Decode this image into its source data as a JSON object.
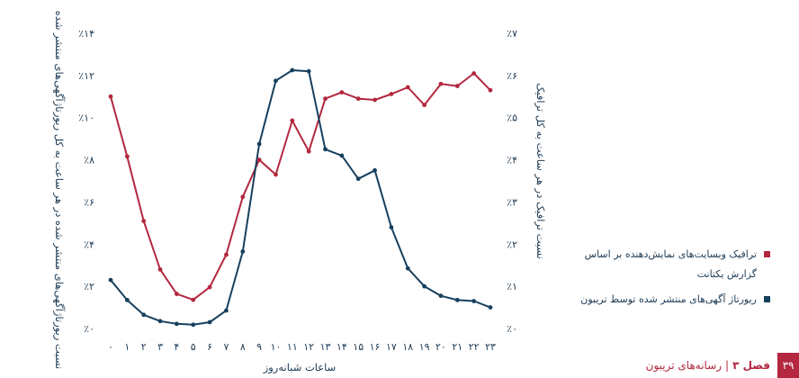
{
  "chart_data": {
    "type": "line",
    "x": [
      "۰",
      "۱",
      "۲",
      "۳",
      "۴",
      "۵",
      "۶",
      "۷",
      "۸",
      "۹",
      "۱۰",
      "۱۱",
      "۱۲",
      "۱۳",
      "۱۴",
      "۱۵",
      "۱۶",
      "۱۷",
      "۱۸",
      "۱۹",
      "۲۰",
      "۲۱",
      "۲۲",
      "۲۳"
    ],
    "xlabel": "ساعات شبانه‌روز",
    "ylabel_left": "نسبت ریورتاژآگهی‌های منتشر شده در هر ساعت به کل ریورتاژآگهی‌های منتشر شده",
    "ylabel_right": "نسبت ترافیک در هر ساعت به کل ترافیک",
    "yticks_left": [
      "٪۰",
      "٪۲",
      "٪۴",
      "٪۶",
      "٪۸",
      "٪۱۰",
      "٪۱۲",
      "٪۱۴"
    ],
    "yticks_right": [
      "٪۰",
      "٪۱",
      "٪۲",
      "٪۳",
      "٪۴",
      "٪۵",
      "٪۶",
      "٪۷"
    ],
    "ylim_left": [
      0,
      14
    ],
    "ylim_right": [
      0,
      7
    ],
    "series": [
      {
        "name": "ترافیک وبسایت‌های نمایش‌دهنده بر اساس گزارش یکتانت",
        "axis": "right",
        "color": "#b3283f",
        "values": [
          5.5,
          4.08,
          2.55,
          1.4,
          0.82,
          0.68,
          0.98,
          1.75,
          3.12,
          4.0,
          3.65,
          4.93,
          4.2,
          5.45,
          5.6,
          5.45,
          5.42,
          5.56,
          5.72,
          5.3,
          5.8,
          5.75,
          6.05,
          5.65
        ]
      },
      {
        "name": "ریورتاژ آگهی‌های منتشر شده توسط تریبون",
        "axis": "left",
        "color": "#17405e",
        "values": [
          2.3,
          1.35,
          0.65,
          0.35,
          0.22,
          0.18,
          0.3,
          0.85,
          3.65,
          8.75,
          11.75,
          12.25,
          12.2,
          8.5,
          8.2,
          7.1,
          7.5,
          4.8,
          2.85,
          2.0,
          1.55,
          1.35,
          1.3,
          1.0
        ]
      }
    ],
    "grid": false,
    "legend": "right"
  },
  "footer": {
    "page_number": "۳۹",
    "chapter_label": "فصل ۳",
    "separator": "|",
    "section_title": "رسانه‌های تریبون"
  }
}
